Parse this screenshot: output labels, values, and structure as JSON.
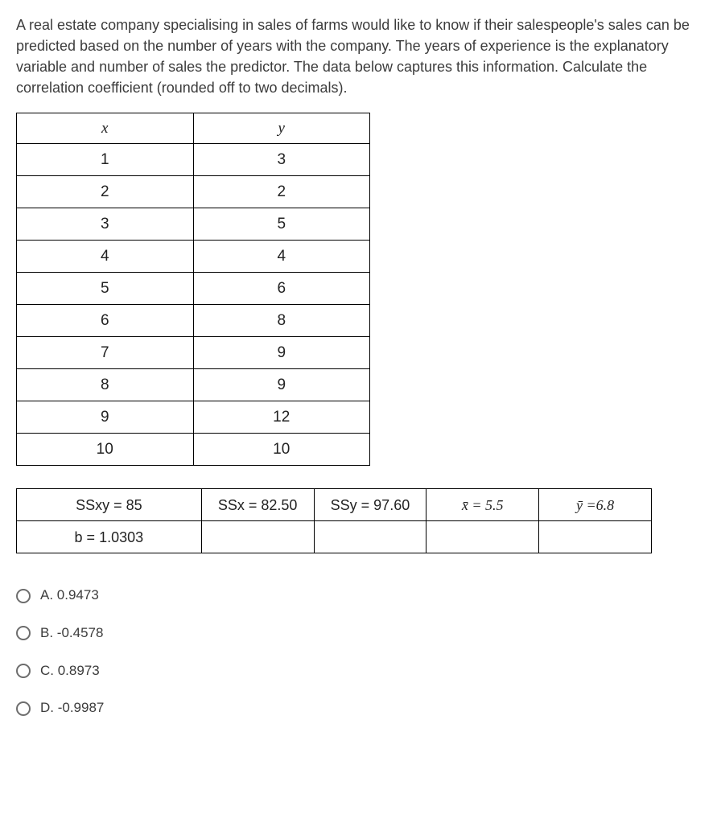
{
  "question": "A real estate company specialising in sales of farms would like to know if their salespeople's sales can be predicted based on the number of years with the company. The years of experience is the explanatory variable and number of sales the predictor. The data below captures this information. Calculate the correlation coefficient (rounded off to two decimals).",
  "data_table": {
    "headers": {
      "x": "x",
      "y": "y"
    },
    "rows": [
      {
        "x": "1",
        "y": "3"
      },
      {
        "x": "2",
        "y": "2"
      },
      {
        "x": "3",
        "y": "5"
      },
      {
        "x": "4",
        "y": "4"
      },
      {
        "x": "5",
        "y": "6"
      },
      {
        "x": "6",
        "y": "8"
      },
      {
        "x": "7",
        "y": "9"
      },
      {
        "x": "8",
        "y": "9"
      },
      {
        "x": "9",
        "y": "12"
      },
      {
        "x": "10",
        "y": "10"
      }
    ]
  },
  "stats_table": {
    "row1": {
      "ssxy": "SSxy = 85",
      "ssx": "SSx = 82.50",
      "ssy": "SSy = 97.60",
      "xbar": "x̄ = 5.5",
      "ybar": "ȳ =6.8"
    },
    "row2": {
      "b": "b = 1.0303",
      "c2": "",
      "c3": "",
      "c4": "",
      "c5": ""
    }
  },
  "options": {
    "a": "A. 0.9473",
    "b": "B. -0.4578",
    "c": "C. 0.8973",
    "d": "D. -0.9987"
  },
  "colors": {
    "text": "#3c3c3c",
    "border": "#000000",
    "radio_border": "#6d6d6d",
    "background": "#ffffff"
  }
}
